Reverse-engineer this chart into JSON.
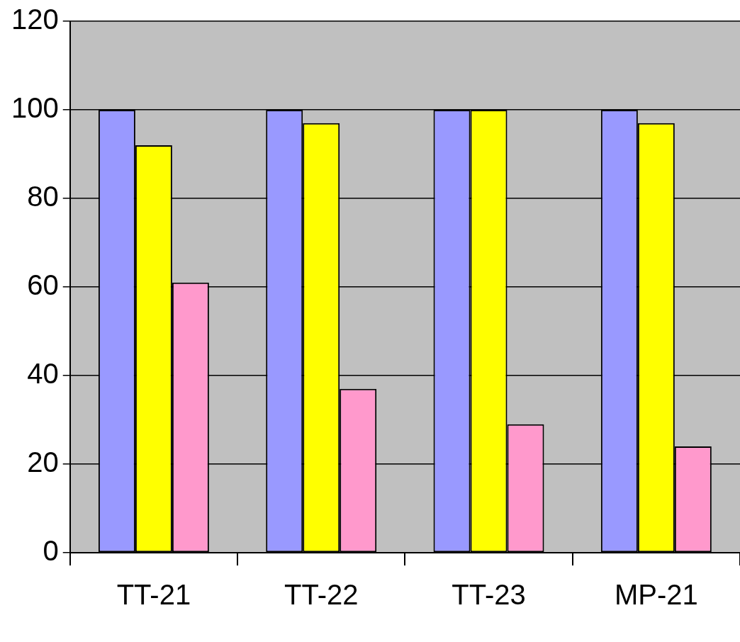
{
  "chart_data": {
    "type": "bar",
    "categories": [
      "TT-21",
      "TT-22",
      "TT-23",
      "MP-21"
    ],
    "series": [
      {
        "color": "#9999ff",
        "values": [
          100,
          100,
          100,
          100
        ]
      },
      {
        "color": "#ffff00",
        "values": [
          92,
          97,
          100,
          97
        ]
      },
      {
        "color": "#ff99cc",
        "values": [
          61,
          37,
          29,
          24
        ]
      }
    ],
    "ylim": [
      0,
      120
    ],
    "yticks": [
      0,
      20,
      40,
      60,
      80,
      100,
      120
    ],
    "grid": "y",
    "legend": false
  }
}
